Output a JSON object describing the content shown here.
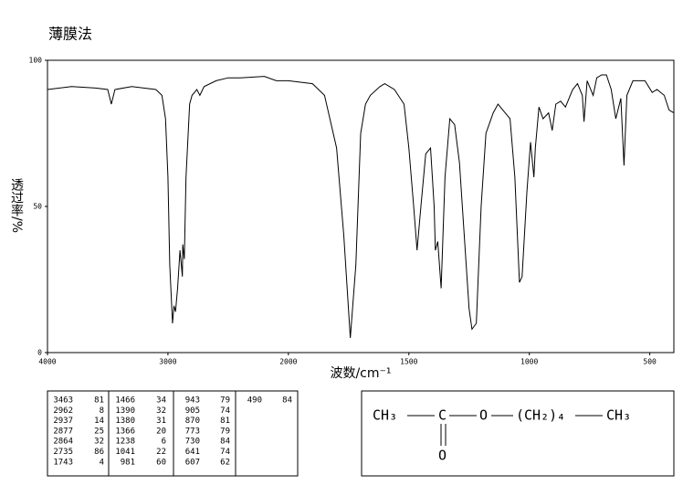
{
  "title": "薄膜法",
  "chart_data": {
    "type": "line",
    "xlabel": "波数/cm⁻¹",
    "ylabel": "透过率/%",
    "color": "#000000",
    "xlim": [
      4000,
      400
    ],
    "x_scale_break": 2000,
    "xticks": [
      4000,
      3000,
      2000,
      1500,
      1000,
      500
    ],
    "ylim": [
      0,
      100
    ],
    "yticks": [
      0,
      50,
      100
    ],
    "x": [
      4000,
      3800,
      3600,
      3500,
      3470,
      3440,
      3300,
      3100,
      3050,
      3020,
      3000,
      2985,
      2962,
      2950,
      2937,
      2920,
      2900,
      2880,
      2877,
      2864,
      2850,
      2820,
      2800,
      2760,
      2735,
      2700,
      2600,
      2500,
      2400,
      2200,
      2100,
      2000,
      1900,
      1850,
      1800,
      1770,
      1743,
      1720,
      1700,
      1680,
      1660,
      1620,
      1600,
      1560,
      1520,
      1500,
      1480,
      1466,
      1450,
      1430,
      1410,
      1395,
      1390,
      1380,
      1366,
      1350,
      1330,
      1310,
      1290,
      1270,
      1250,
      1238,
      1220,
      1200,
      1180,
      1150,
      1130,
      1110,
      1080,
      1060,
      1041,
      1030,
      1010,
      995,
      981,
      975,
      960,
      943,
      920,
      905,
      890,
      870,
      850,
      820,
      800,
      780,
      773,
      760,
      735,
      720,
      700,
      680,
      660,
      641,
      620,
      607,
      595,
      570,
      520,
      490,
      470,
      440,
      420,
      400
    ],
    "values": [
      90,
      91,
      90.5,
      90,
      85,
      90,
      91,
      90,
      88,
      80,
      60,
      30,
      10,
      16,
      14,
      22,
      35,
      26,
      37,
      32,
      60,
      85,
      88,
      90,
      88,
      91,
      93,
      94,
      94,
      94.5,
      93,
      93,
      92,
      88,
      70,
      40,
      5,
      30,
      75,
      85,
      88,
      91,
      92,
      90,
      85,
      70,
      50,
      35,
      50,
      68,
      70,
      50,
      35,
      38,
      22,
      60,
      80,
      78,
      65,
      40,
      15,
      8,
      10,
      50,
      75,
      82,
      85,
      83,
      80,
      60,
      24,
      26,
      55,
      72,
      60,
      70,
      84,
      80,
      82,
      76,
      85,
      86,
      84,
      90,
      92,
      88,
      79,
      93,
      88,
      94,
      95,
      95,
      90,
      80,
      87,
      64,
      88,
      93,
      93,
      89,
      90,
      88,
      83,
      82
    ]
  },
  "peak_table": [
    [
      3463,
      81
    ],
    [
      2962,
      8
    ],
    [
      2937,
      14
    ],
    [
      2877,
      25
    ],
    [
      2864,
      32
    ],
    [
      2735,
      86
    ],
    [
      1743,
      4
    ],
    [
      1466,
      34
    ],
    [
      1390,
      32
    ],
    [
      1380,
      31
    ],
    [
      1366,
      20
    ],
    [
      1238,
      6
    ],
    [
      1041,
      22
    ],
    [
      981,
      60
    ],
    [
      943,
      79
    ],
    [
      905,
      74
    ],
    [
      870,
      81
    ],
    [
      773,
      79
    ],
    [
      730,
      84
    ],
    [
      641,
      74
    ],
    [
      607,
      62
    ],
    [
      490,
      84
    ]
  ],
  "structure": {
    "left": "CH₃",
    "carbon": "C",
    "ether": "O",
    "chain": "(CH₂)₄",
    "right": "CH₃",
    "carbonyl": "O"
  }
}
